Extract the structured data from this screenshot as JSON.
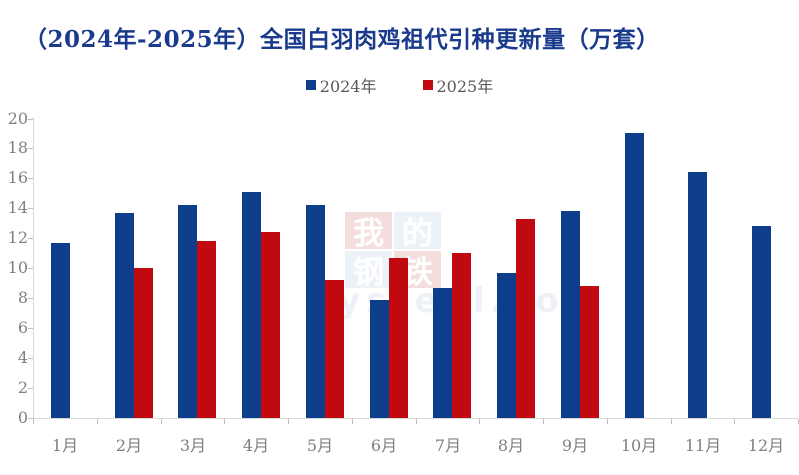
{
  "title": "（2024年-2025年）全国白羽肉鸡祖代引种更新量（万套）",
  "legend": [
    {
      "label": "2024年",
      "color": "#0d3d8b"
    },
    {
      "label": "2025年",
      "color": "#c00a10"
    }
  ],
  "watermark": {
    "blocks": [
      {
        "char": "我",
        "bg": "red"
      },
      {
        "char": "的",
        "bg": "blue"
      },
      {
        "char": "钢",
        "bg": "blue"
      },
      {
        "char": "铁",
        "bg": "red"
      }
    ],
    "text": "ysteel.co"
  },
  "chart_data": {
    "type": "bar",
    "title": "（2024年-2025年）全国白羽肉鸡祖代引种更新量（万套）",
    "categories": [
      "1月",
      "2月",
      "3月",
      "4月",
      "5月",
      "6月",
      "7月",
      "8月",
      "9月",
      "10月",
      "11月",
      "12月"
    ],
    "series": [
      {
        "name": "2024年",
        "color": "#0d3d8b",
        "values": [
          11.7,
          13.7,
          14.2,
          15.1,
          14.2,
          7.9,
          8.7,
          9.7,
          13.8,
          19.0,
          16.4,
          12.8
        ]
      },
      {
        "name": "2025年",
        "color": "#c00a10",
        "values": [
          null,
          10.0,
          11.8,
          12.4,
          9.2,
          10.7,
          11.0,
          13.3,
          8.8,
          null,
          null,
          null
        ]
      }
    ],
    "xlabel": "",
    "ylabel": "",
    "ylim": [
      0,
      20
    ],
    "yticks": [
      0,
      2,
      4,
      6,
      8,
      10,
      12,
      14,
      16,
      18,
      20
    ],
    "grid": false,
    "legend_position": "top-center"
  }
}
